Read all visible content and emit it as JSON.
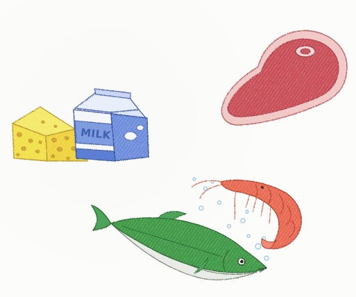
{
  "illustration": {
    "items": [
      {
        "icon": "cheese-icon"
      },
      {
        "icon": "milk-carton-icon",
        "label": "MILK"
      },
      {
        "icon": "steak-icon"
      },
      {
        "icon": "shrimp-icon"
      },
      {
        "icon": "fish-icon"
      }
    ],
    "colors": {
      "cheese": "#f2e24a",
      "cheese_holes": "#d8a93a",
      "milk_blue": "#5b7fd3",
      "milk_white": "#f4f6fb",
      "steak_red": "#c8505a",
      "steak_fat": "#f1c9c6",
      "shrimp": "#e56a52",
      "fish_green": "#3f9a47",
      "fish_belly": "#e9ece6",
      "bubbles": "#8fc3ea"
    }
  }
}
